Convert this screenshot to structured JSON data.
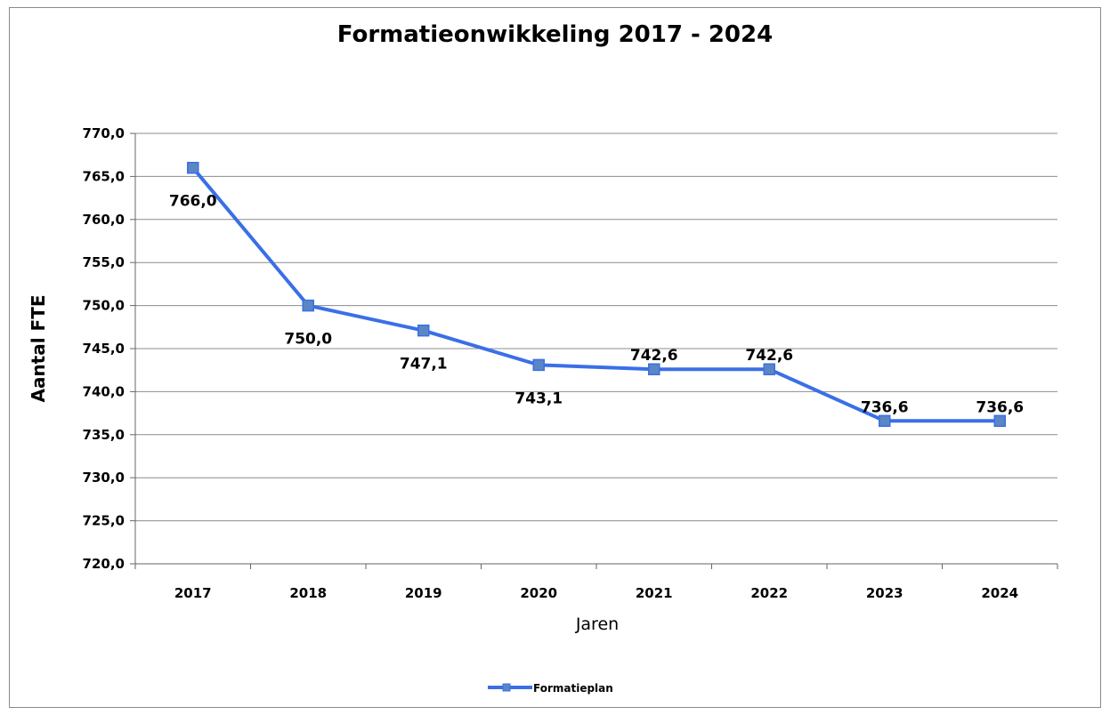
{
  "chart_data": {
    "type": "line",
    "title": "Formatieonwikkeling 2017 - 2024",
    "xlabel": "Jaren",
    "ylabel": "Aantal FTE",
    "categories": [
      "2017",
      "2018",
      "2019",
      "2020",
      "2021",
      "2022",
      "2023",
      "2024"
    ],
    "series": [
      {
        "name": "Formatieplan",
        "values": [
          766.0,
          750.0,
          747.1,
          743.1,
          742.6,
          742.6,
          736.6,
          736.6
        ],
        "data_labels": [
          "766,0",
          "750,0",
          "747,1",
          "743,1",
          "742,6",
          "742,6",
          "736,6",
          "736,6"
        ],
        "color": "#3a6fe6",
        "marker_color": "#5b86c4"
      }
    ],
    "ylim": [
      720,
      770
    ],
    "y_ticks": [
      "720,0",
      "725,0",
      "730,0",
      "735,0",
      "740,0",
      "745,0",
      "750,0",
      "755,0",
      "760,0",
      "765,0",
      "770,0"
    ],
    "grid": true,
    "legend": "bottom-center"
  }
}
